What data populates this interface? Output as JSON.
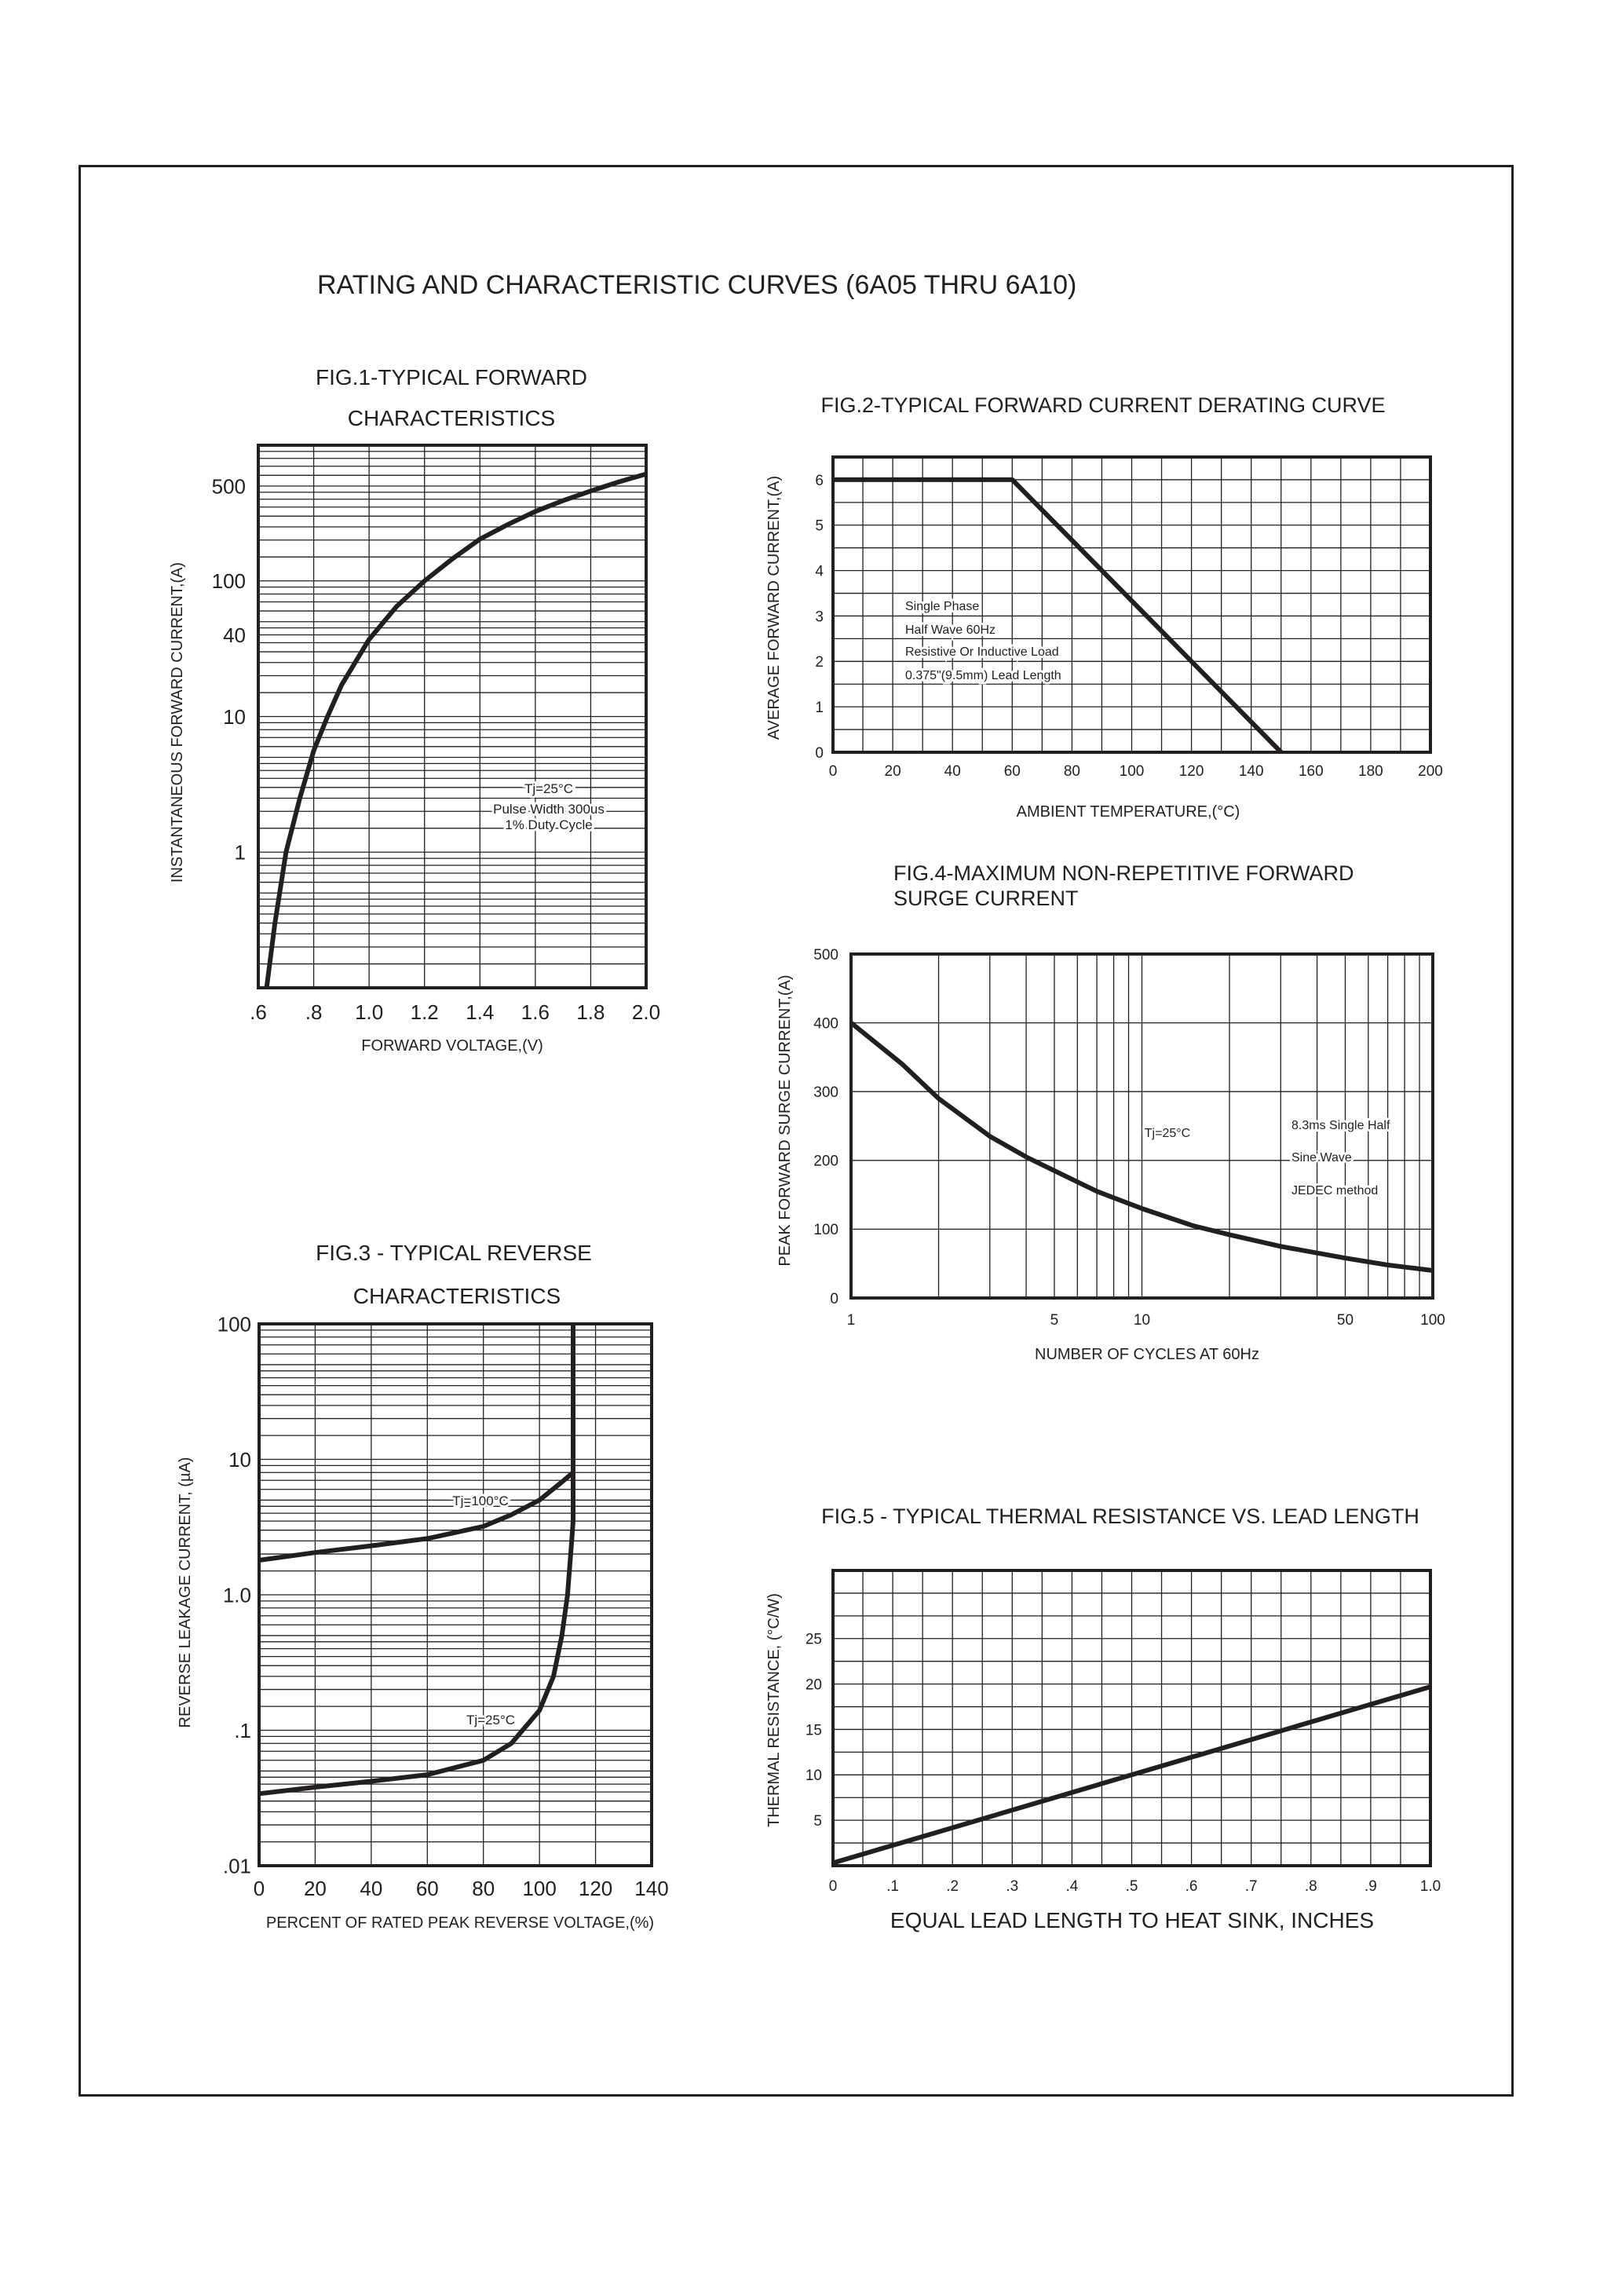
{
  "page_title": "RATING AND CHARACTERISTIC CURVES (6A05 THRU 6A10)",
  "chart_data": [
    {
      "id": "fig1",
      "type": "line",
      "title": [
        "FIG.1-TYPICAL FORWARD",
        "CHARACTERISTICS"
      ],
      "xlabel": "FORWARD VOLTAGE,(V)",
      "ylabel": "INSTANTANEOUS FORWARD CURRENT,(A)",
      "x_scale": "linear",
      "y_scale": "log",
      "xlim": [
        0.6,
        2.0
      ],
      "ylim": [
        0.1,
        1000
      ],
      "x_ticks": [
        {
          "v": 0.6,
          "label": ".6"
        },
        {
          "v": 0.8,
          "label": ".8"
        },
        {
          "v": 1.0,
          "label": "1.0"
        },
        {
          "v": 1.2,
          "label": "1.2"
        },
        {
          "v": 1.4,
          "label": "1.4"
        },
        {
          "v": 1.6,
          "label": "1.6"
        },
        {
          "v": 1.8,
          "label": "1.8"
        },
        {
          "v": 2.0,
          "label": "2.0"
        }
      ],
      "y_ticks": [
        {
          "v": 500,
          "label": "500"
        },
        {
          "v": 100,
          "label": "100"
        },
        {
          "v": 40,
          "label": "40"
        },
        {
          "v": 10,
          "label": "10"
        },
        {
          "v": 1,
          "label": "1"
        }
      ],
      "x_grid_step": 0.2,
      "grid": true,
      "series": [
        {
          "points": [
            [
              0.63,
              0.1
            ],
            [
              0.66,
              0.3
            ],
            [
              0.7,
              1
            ],
            [
              0.75,
              2.5
            ],
            [
              0.8,
              5.6
            ],
            [
              0.85,
              10
            ],
            [
              0.9,
              17
            ],
            [
              1.0,
              37
            ],
            [
              1.1,
              65
            ],
            [
              1.2,
              100
            ],
            [
              1.3,
              145
            ],
            [
              1.4,
              203
            ],
            [
              1.5,
              260
            ],
            [
              1.6,
              325
            ],
            [
              1.7,
              390
            ],
            [
              1.8,
              460
            ],
            [
              1.9,
              535
            ],
            [
              2.0,
              614
            ]
          ]
        }
      ],
      "annotations": [
        "Tj=25°C",
        "Pulse Width 300us",
        "1% Duty Cycle"
      ]
    },
    {
      "id": "fig2",
      "type": "line",
      "title": [
        "FIG.2-TYPICAL FORWARD CURRENT DERATING CURVE"
      ],
      "xlabel": "AMBIENT TEMPERATURE,(°C)",
      "ylabel": "AVERAGE FORWARD CURRENT,(A)",
      "x_scale": "linear",
      "y_scale": "linear",
      "xlim": [
        0,
        200
      ],
      "ylim": [
        0,
        6.5
      ],
      "x_ticks": [
        {
          "v": 0,
          "label": "0"
        },
        {
          "v": 20,
          "label": "20"
        },
        {
          "v": 40,
          "label": "40"
        },
        {
          "v": 60,
          "label": "60"
        },
        {
          "v": 80,
          "label": "80"
        },
        {
          "v": 100,
          "label": "100"
        },
        {
          "v": 120,
          "label": "120"
        },
        {
          "v": 140,
          "label": "140"
        },
        {
          "v": 160,
          "label": "160"
        },
        {
          "v": 180,
          "label": "180"
        },
        {
          "v": 200,
          "label": "200"
        }
      ],
      "y_ticks": [
        {
          "v": 0,
          "label": "0"
        },
        {
          "v": 1,
          "label": "1"
        },
        {
          "v": 2,
          "label": "2"
        },
        {
          "v": 3,
          "label": "3"
        },
        {
          "v": 4,
          "label": "4"
        },
        {
          "v": 5,
          "label": "5"
        },
        {
          "v": 6,
          "label": "6"
        }
      ],
      "x_grid_step": 10,
      "y_grid_step": 0.5,
      "grid": true,
      "series": [
        {
          "points": [
            [
              0,
              6
            ],
            [
              60,
              6
            ],
            [
              150,
              0
            ]
          ]
        }
      ],
      "annotations": [
        "Single Phase",
        "Half Wave 60Hz",
        "Resistive Or Inductive Load",
        "0.375\"(9.5mm) Lead Length"
      ]
    },
    {
      "id": "fig3",
      "type": "line",
      "title": [
        "FIG.3 - TYPICAL REVERSE",
        "CHARACTERISTICS"
      ],
      "xlabel": "PERCENT OF RATED PEAK REVERSE VOLTAGE,(%)",
      "ylabel": "REVERSE LEAKAGE CURRENT, (µA)",
      "x_scale": "linear",
      "y_scale": "log",
      "xlim": [
        0,
        140
      ],
      "ylim": [
        0.01,
        100
      ],
      "x_ticks": [
        {
          "v": 0,
          "label": "0"
        },
        {
          "v": 20,
          "label": "20"
        },
        {
          "v": 40,
          "label": "40"
        },
        {
          "v": 60,
          "label": "60"
        },
        {
          "v": 80,
          "label": "80"
        },
        {
          "v": 100,
          "label": "100"
        },
        {
          "v": 120,
          "label": "120"
        },
        {
          "v": 140,
          "label": "140"
        }
      ],
      "y_ticks": [
        {
          "v": 100,
          "label": "100"
        },
        {
          "v": 10,
          "label": "10"
        },
        {
          "v": 1,
          "label": "1.0"
        },
        {
          "v": 0.1,
          "label": ".1"
        },
        {
          "v": 0.01,
          "label": ".01"
        }
      ],
      "x_grid_step": 20,
      "grid": true,
      "series": [
        {
          "name": "Tj=100°C",
          "points": [
            [
              0,
              1.8
            ],
            [
              20,
              2.05
            ],
            [
              40,
              2.3
            ],
            [
              60,
              2.6
            ],
            [
              80,
              3.2
            ],
            [
              90,
              3.9
            ],
            [
              100,
              5
            ],
            [
              108,
              6.8
            ],
            [
              112,
              8
            ]
          ]
        },
        {
          "name": "Tj=25°C",
          "points": [
            [
              0,
              0.034
            ],
            [
              20,
              0.038
            ],
            [
              40,
              0.042
            ],
            [
              60,
              0.047
            ],
            [
              80,
              0.06
            ],
            [
              90,
              0.08
            ],
            [
              100,
              0.14
            ],
            [
              105,
              0.25
            ],
            [
              108,
              0.5
            ],
            [
              110,
              1
            ],
            [
              111.5,
              2.5
            ],
            [
              112,
              3.5
            ],
            [
              112,
              100
            ]
          ]
        }
      ],
      "annotations": []
    },
    {
      "id": "fig4",
      "type": "line",
      "title": [
        "FIG.4-MAXIMUM NON-REPETITIVE FORWARD",
        "SURGE CURRENT"
      ],
      "xlabel": "NUMBER OF CYCLES AT 60Hz",
      "ylabel": "PEAK FORWARD SURGE CURRENT,(A)",
      "x_scale": "log",
      "y_scale": "linear",
      "xlim": [
        1,
        100
      ],
      "ylim": [
        0,
        500
      ],
      "x_ticks": [
        {
          "v": 1,
          "label": "1"
        },
        {
          "v": 5,
          "label": "5"
        },
        {
          "v": 10,
          "label": "10"
        },
        {
          "v": 50,
          "label": "50"
        },
        {
          "v": 100,
          "label": "100"
        }
      ],
      "y_ticks": [
        {
          "v": 0,
          "label": "0"
        },
        {
          "v": 100,
          "label": "100"
        },
        {
          "v": 200,
          "label": "200"
        },
        {
          "v": 300,
          "label": "300"
        },
        {
          "v": 400,
          "label": "400"
        },
        {
          "v": 500,
          "label": "500"
        }
      ],
      "y_grid_step": 100,
      "grid": true,
      "series": [
        {
          "points": [
            [
              1,
              400
            ],
            [
              1.5,
              340
            ],
            [
              2,
              290
            ],
            [
              3,
              235
            ],
            [
              4,
              205
            ],
            [
              5,
              185
            ],
            [
              7,
              155
            ],
            [
              10,
              130
            ],
            [
              15,
              105
            ],
            [
              20,
              92
            ],
            [
              30,
              75
            ],
            [
              50,
              58
            ],
            [
              70,
              48
            ],
            [
              100,
              40
            ]
          ]
        }
      ],
      "annotations": [
        "Tj=25°C",
        "8.3ms Single Half",
        "Sine Wave",
        "JEDEC method"
      ]
    },
    {
      "id": "fig5",
      "type": "line",
      "title": [
        "FIG.5 - TYPICAL THERMAL RESISTANCE VS. LEAD LENGTH"
      ],
      "xlabel": "EQUAL LEAD LENGTH TO HEAT SINK, INCHES",
      "ylabel": "THERMAL RESISTANCE, (°C/W)",
      "x_scale": "linear",
      "y_scale": "linear",
      "xlim": [
        0,
        1.0
      ],
      "ylim": [
        0,
        32.5
      ],
      "x_ticks": [
        {
          "v": 0,
          "label": "0"
        },
        {
          "v": 0.1,
          "label": ".1"
        },
        {
          "v": 0.2,
          "label": ".2"
        },
        {
          "v": 0.3,
          "label": ".3"
        },
        {
          "v": 0.4,
          "label": ".4"
        },
        {
          "v": 0.5,
          "label": ".5"
        },
        {
          "v": 0.6,
          "label": ".6"
        },
        {
          "v": 0.7,
          "label": ".7"
        },
        {
          "v": 0.8,
          "label": ".8"
        },
        {
          "v": 0.9,
          "label": ".9"
        },
        {
          "v": 1.0,
          "label": "1.0"
        }
      ],
      "y_ticks": [
        {
          "v": 5,
          "label": "5"
        },
        {
          "v": 10,
          "label": "10"
        },
        {
          "v": 15,
          "label": "15"
        },
        {
          "v": 20,
          "label": "20"
        },
        {
          "v": 25,
          "label": "25"
        }
      ],
      "x_grid_step": 0.05,
      "y_grid_step": 2.5,
      "grid": true,
      "series": [
        {
          "points": [
            [
              0,
              0.3
            ],
            [
              1.0,
              19.7
            ]
          ]
        }
      ],
      "annotations": []
    }
  ]
}
